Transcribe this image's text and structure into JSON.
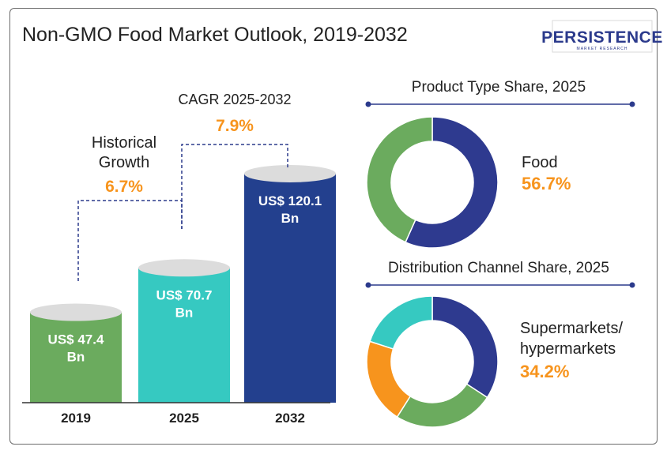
{
  "title": "Non-GMO Food Market Outlook, 2019-2032",
  "logo": {
    "main": "PERSISTENCE",
    "sub": "MARKET RESEARCH",
    "color": "#2b3a8c"
  },
  "colors": {
    "green": "#6bab5e",
    "teal": "#36c9c1",
    "navy": "#23408e",
    "indigo": "#2e3a8f",
    "orange": "#f7941d",
    "accent_text": "#f7941d",
    "dark_text": "#222222"
  },
  "annotations": {
    "historical_label_line1": "Historical",
    "historical_label_line2": "Growth",
    "historical_value": "6.7%",
    "cagr_label": "CAGR 2025-2032",
    "cagr_value": "7.9%"
  },
  "chart_data": [
    {
      "type": "bar",
      "categories": [
        "2019",
        "2025",
        "2032"
      ],
      "values": [
        47.4,
        70.7,
        120.1
      ],
      "value_labels": [
        "US$ 47.4 Bn",
        "US$ 70.7 Bn",
        "US$ 120.1 Bn"
      ],
      "colors": [
        "#6bab5e",
        "#36c9c1",
        "#23408e"
      ]
    },
    {
      "type": "pie",
      "title": "Product Type Share, 2025",
      "labels": [
        "Food",
        ""
      ],
      "values": [
        56.7,
        43.3
      ],
      "colors": [
        "#2e3a8f",
        "#6bab5e"
      ],
      "callout_label": "Food",
      "callout_value": "56.7%"
    },
    {
      "type": "pie",
      "title": "Distribution Channel Share, 2025",
      "labels": [
        "Supermarkets/ hypermarkets",
        "",
        "",
        ""
      ],
      "values": [
        34.2,
        24.8,
        21.0,
        20.0
      ],
      "colors": [
        "#2e3a8f",
        "#6bab5e",
        "#f7941d",
        "#36c9c1"
      ],
      "callout_label_line1": "Supermarkets/",
      "callout_label_line2": "hypermarkets",
      "callout_value": "34.2%"
    }
  ]
}
